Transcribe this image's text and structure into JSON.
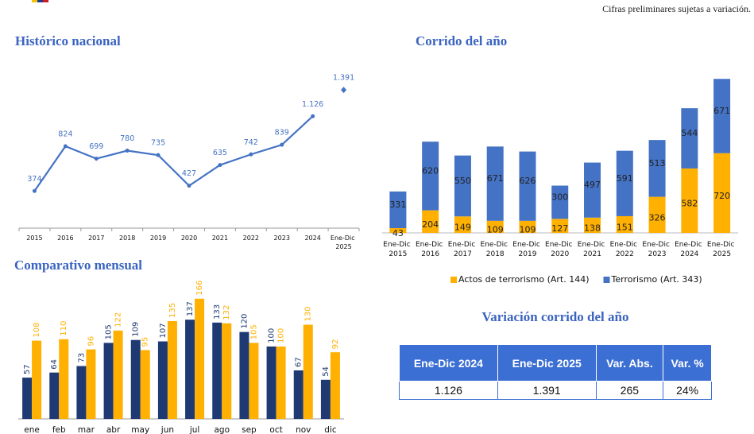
{
  "note": "Cifras preliminares sujetas a variación.",
  "chart_data": [
    {
      "type": "line",
      "title": "Histórico nacional",
      "categories": [
        "2015",
        "2016",
        "2017",
        "2018",
        "2019",
        "2020",
        "2021",
        "2022",
        "2023",
        "2024",
        "Ene-Dic 2025"
      ],
      "series": [
        {
          "color": "#4472c4",
          "values": [
            374,
            824,
            699,
            780,
            735,
            427,
            635,
            742,
            839,
            1126,
            null
          ],
          "value_labels": [
            "374",
            "824",
            "699",
            "780",
            "735",
            "427",
            "635",
            "742",
            "839",
            "1.126",
            null
          ]
        },
        {
          "color": "#4472c4",
          "values": [
            null,
            null,
            null,
            null,
            null,
            null,
            null,
            null,
            null,
            null,
            1391
          ],
          "value_labels": [
            null,
            null,
            null,
            null,
            null,
            null,
            null,
            null,
            null,
            null,
            "1.391"
          ]
        }
      ],
      "ylim": [
        0,
        1600
      ]
    },
    {
      "type": "bar",
      "title": "Comparativo mensual",
      "categories": [
        "ene",
        "feb",
        "mar",
        "abr",
        "may",
        "jun",
        "jul",
        "ago",
        "sep",
        "oct",
        "nov",
        "dic"
      ],
      "series": [
        {
          "color": "#1f3a73",
          "values": [
            57,
            64,
            73,
            105,
            109,
            107,
            137,
            133,
            120,
            100,
            67,
            54
          ]
        },
        {
          "color": "#ffb000",
          "values": [
            108,
            110,
            96,
            122,
            95,
            135,
            166,
            132,
            105,
            100,
            130,
            92
          ]
        }
      ],
      "ylim": [
        0,
        180
      ]
    },
    {
      "type": "stacked_bar",
      "title": "Corrido del año",
      "categories": [
        "Ene-Dic 2015",
        "Ene-Dic 2016",
        "Ene-Dic 2017",
        "Ene-Dic 2018",
        "Ene-Dic 2019",
        "Ene-Dic 2020",
        "Ene-Dic 2021",
        "Ene-Dic 2022",
        "Ene-Dic 2023",
        "Ene-Dic 2024",
        "Ene-Dic 2025"
      ],
      "series": [
        {
          "name": "Actos de terrorismo (Art. 144)",
          "color": "#ffb000",
          "values": [
            43,
            204,
            149,
            109,
            109,
            127,
            138,
            151,
            326,
            582,
            720
          ]
        },
        {
          "name": "Terrorismo (Art. 343)",
          "color": "#4472c4",
          "values": [
            331,
            620,
            550,
            671,
            626,
            300,
            497,
            591,
            513,
            544,
            671
          ]
        }
      ],
      "ylim": [
        0,
        1400
      ],
      "legend": "bottom"
    }
  ],
  "table": {
    "title": "Variación corrido del año",
    "header": [
      "Ene-Dic 2024",
      "Ene-Dic 2025",
      "Var. Abs.",
      "Var. %"
    ],
    "rows": [
      [
        "1.126",
        "1.391",
        "265",
        "24%"
      ]
    ]
  }
}
